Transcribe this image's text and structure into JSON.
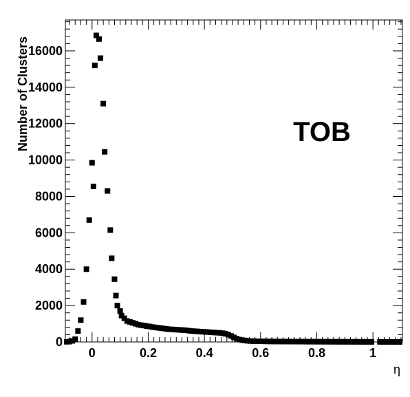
{
  "chart_data": {
    "type": "scatter",
    "title": "",
    "xlabel": "η",
    "ylabel": "Number of Clusters",
    "annotation": "TOB",
    "xlim": [
      -0.095,
      1.105
    ],
    "ylim": [
      0,
      17700
    ],
    "grid": false,
    "legend": "none",
    "marker_color": "#000000",
    "x_ticks": [
      0,
      0.2,
      0.4,
      0.6,
      0.8,
      1
    ],
    "x_tick_labels": [
      "0",
      "0.2",
      "0.4",
      "0.6",
      "0.8",
      "1"
    ],
    "y_ticks": [
      0,
      2000,
      4000,
      6000,
      8000,
      10000,
      12000,
      14000,
      16000
    ],
    "y_tick_labels": [
      "0",
      "2000",
      "4000",
      "6000",
      "8000",
      "10000",
      "12000",
      "14000",
      "16000"
    ],
    "series": [
      {
        "points": [
          [
            -0.09,
            10
          ],
          [
            -0.08,
            20
          ],
          [
            -0.07,
            60
          ],
          [
            -0.06,
            150
          ],
          [
            -0.05,
            600
          ],
          [
            -0.04,
            1200
          ],
          [
            -0.03,
            2200
          ],
          [
            -0.02,
            4000
          ],
          [
            -0.01,
            6700
          ],
          [
            0.0,
            9850
          ],
          [
            0.005,
            8550
          ],
          [
            0.01,
            15200
          ],
          [
            0.015,
            16850
          ],
          [
            0.025,
            16650
          ],
          [
            0.03,
            15600
          ],
          [
            0.04,
            13100
          ],
          [
            0.045,
            10450
          ],
          [
            0.055,
            8300
          ],
          [
            0.065,
            6150
          ],
          [
            0.07,
            4600
          ],
          [
            0.08,
            3450
          ],
          [
            0.085,
            2550
          ],
          [
            0.09,
            2000
          ],
          [
            0.1,
            1700
          ],
          [
            0.105,
            1450
          ],
          [
            0.115,
            1300
          ],
          [
            0.125,
            1150
          ],
          [
            0.135,
            1100
          ],
          [
            0.145,
            1050
          ],
          [
            0.155,
            1000
          ],
          [
            0.165,
            950
          ],
          [
            0.175,
            920
          ],
          [
            0.185,
            900
          ],
          [
            0.195,
            870
          ],
          [
            0.205,
            850
          ],
          [
            0.215,
            820
          ],
          [
            0.225,
            800
          ],
          [
            0.235,
            780
          ],
          [
            0.245,
            760
          ],
          [
            0.255,
            740
          ],
          [
            0.265,
            720
          ],
          [
            0.275,
            700
          ],
          [
            0.285,
            690
          ],
          [
            0.295,
            680
          ],
          [
            0.305,
            670
          ],
          [
            0.315,
            660
          ],
          [
            0.325,
            650
          ],
          [
            0.335,
            640
          ],
          [
            0.345,
            620
          ],
          [
            0.355,
            600
          ],
          [
            0.365,
            590
          ],
          [
            0.375,
            580
          ],
          [
            0.385,
            570
          ],
          [
            0.395,
            560
          ],
          [
            0.405,
            550
          ],
          [
            0.415,
            540
          ],
          [
            0.425,
            530
          ],
          [
            0.435,
            520
          ],
          [
            0.445,
            510
          ],
          [
            0.455,
            500
          ],
          [
            0.465,
            480
          ],
          [
            0.475,
            450
          ],
          [
            0.485,
            400
          ],
          [
            0.495,
            330
          ],
          [
            0.505,
            250
          ],
          [
            0.515,
            180
          ],
          [
            0.525,
            130
          ],
          [
            0.535,
            100
          ],
          [
            0.545,
            80
          ],
          [
            0.555,
            60
          ],
          [
            0.565,
            50
          ],
          [
            0.575,
            45
          ],
          [
            0.585,
            40
          ],
          [
            0.595,
            38
          ],
          [
            0.605,
            35
          ],
          [
            0.615,
            33
          ],
          [
            0.625,
            30
          ],
          [
            0.635,
            28
          ],
          [
            0.645,
            26
          ],
          [
            0.655,
            25
          ],
          [
            0.665,
            24
          ],
          [
            0.675,
            23
          ],
          [
            0.685,
            22
          ],
          [
            0.695,
            21
          ],
          [
            0.705,
            20
          ],
          [
            0.715,
            20
          ],
          [
            0.725,
            19
          ],
          [
            0.735,
            18
          ],
          [
            0.745,
            18
          ],
          [
            0.755,
            17
          ],
          [
            0.765,
            16
          ],
          [
            0.775,
            16
          ],
          [
            0.785,
            15
          ],
          [
            0.795,
            15
          ],
          [
            0.805,
            14
          ],
          [
            0.815,
            14
          ],
          [
            0.825,
            13
          ],
          [
            0.835,
            13
          ],
          [
            0.845,
            12
          ],
          [
            0.855,
            12
          ],
          [
            0.865,
            11
          ],
          [
            0.875,
            11
          ],
          [
            0.885,
            10
          ],
          [
            0.895,
            10
          ],
          [
            0.905,
            9
          ],
          [
            0.915,
            9
          ],
          [
            0.925,
            8
          ],
          [
            0.935,
            8
          ],
          [
            0.945,
            7
          ],
          [
            0.955,
            7
          ],
          [
            0.965,
            6
          ],
          [
            0.975,
            6
          ],
          [
            0.985,
            5
          ],
          [
            0.995,
            5
          ],
          [
            1.025,
            4
          ],
          [
            1.035,
            4
          ],
          [
            1.045,
            3
          ],
          [
            1.055,
            3
          ],
          [
            1.065,
            2
          ],
          [
            1.075,
            2
          ],
          [
            1.085,
            1
          ],
          [
            1.095,
            1
          ]
        ]
      }
    ]
  }
}
